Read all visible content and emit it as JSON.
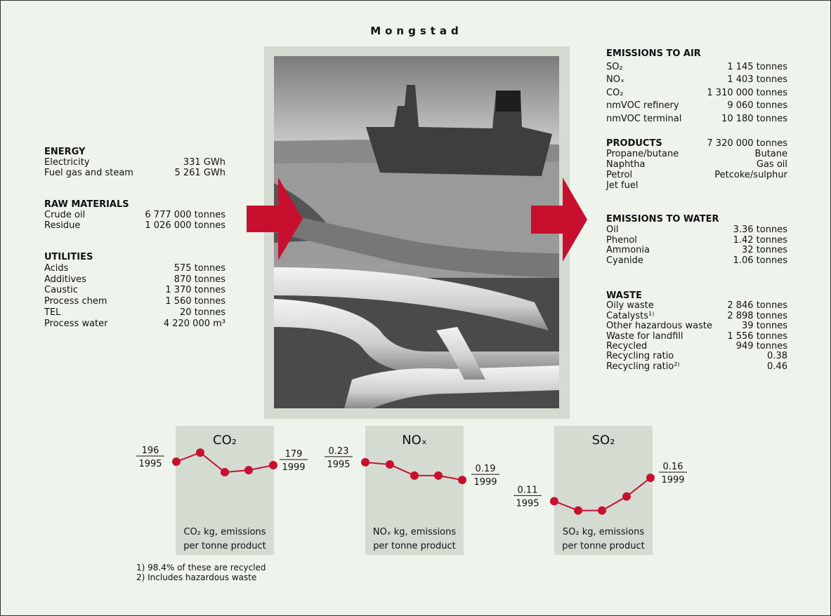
{
  "title": "Mongstad",
  "left": [
    {
      "heading": "ENERGY",
      "rows": [
        [
          "Electricity",
          "331 GWh"
        ],
        [
          "Fuel gas and steam",
          "5 261 GWh"
        ]
      ]
    },
    {
      "heading": "RAW MATERIALS",
      "rows": [
        [
          "Crude oil",
          "6 777 000 tonnes"
        ],
        [
          "Residue",
          "1 026 000 tonnes"
        ]
      ]
    },
    {
      "heading": "UTILITIES",
      "rows": [
        [
          "Acids",
          "575 tonnes"
        ],
        [
          "Additives",
          "870 tonnes"
        ],
        [
          "Caustic",
          "1 370 tonnes"
        ],
        [
          "Process chem",
          "1 560 tonnes"
        ],
        [
          "TEL",
          "20 tonnes"
        ],
        [
          "Process water",
          "4 220 000 m³"
        ]
      ]
    }
  ],
  "right": [
    {
      "heading": "EMISSIONS TO AIR",
      "rows": [
        [
          "SO₂",
          "1 145 tonnes"
        ],
        [
          "NOₓ",
          "1 403 tonnes"
        ],
        [
          "CO₂",
          "1 310 000 tonnes"
        ],
        [
          "nmVOC refinery",
          "9 060 tonnes"
        ],
        [
          "nmVOC terminal",
          "10 180 tonnes"
        ]
      ]
    },
    {
      "heading": "PRODUCTS",
      "heading_value": "7 320 000 tonnes",
      "rows": [
        [
          "Propane/butane",
          "Butane"
        ],
        [
          "Naphtha",
          "Gas oil"
        ],
        [
          "Petrol",
          "Petcoke/sulphur"
        ],
        [
          "Jet fuel"
        ]
      ]
    },
    {
      "heading": "EMISSIONS TO WATER",
      "rows": [
        [
          "Oil",
          "3.36 tonnes"
        ],
        [
          "Phenol",
          "1.42 tonnes"
        ],
        [
          "Ammonia",
          "32 tonnes"
        ],
        [
          "Cyanide",
          "1.06 tonnes"
        ]
      ]
    },
    {
      "heading": "WASTE",
      "rows": [
        [
          "Oily waste",
          "2 846 tonnes"
        ],
        [
          "Catalysts¹⁾",
          "2 898 tonnes"
        ],
        [
          "Other hazardous waste",
          "39 tonnes"
        ],
        [
          "Waste for landfill",
          "1 556 tonnes"
        ],
        [
          "Recycled",
          "949 tonnes"
        ],
        [
          "Recycling ratio",
          "0.38"
        ],
        [
          "Recycling ratio²⁾",
          "0.46"
        ]
      ]
    }
  ],
  "chart_data": [
    {
      "type": "line",
      "title": "CO₂",
      "categories": [
        "1995",
        null,
        null,
        null,
        "1999"
      ],
      "values": [
        196,
        240,
        145,
        155,
        179
      ],
      "ylim": [
        -86,
        322
      ],
      "color": "#c8102e",
      "caption": [
        "CO₂ kg, emissions",
        "per tonne product"
      ]
    },
    {
      "type": "line",
      "title": "NOₓ",
      "categories": [
        "1995",
        null,
        null,
        null,
        "1999"
      ],
      "values": [
        0.23,
        0.225,
        0.2,
        0.2,
        0.19
      ],
      "ylim": [
        0.1,
        0.29
      ],
      "color": "#c8102e",
      "caption": [
        "NOₓ kg, emissions",
        "per tonne product"
      ]
    },
    {
      "type": "line",
      "title": "SO₂",
      "categories": [
        "1995",
        null,
        null,
        null,
        "1999"
      ],
      "values": [
        0.11,
        0.09,
        0.09,
        0.12,
        0.16
      ],
      "ylim": [
        0.07,
        0.25
      ],
      "color": "#c8102e",
      "caption": [
        "SO₂ kg, emissions",
        "per tonne product"
      ]
    }
  ],
  "footnotes": [
    "1) 98.4% of these are recycled",
    "2) Includes hazardous waste"
  ]
}
